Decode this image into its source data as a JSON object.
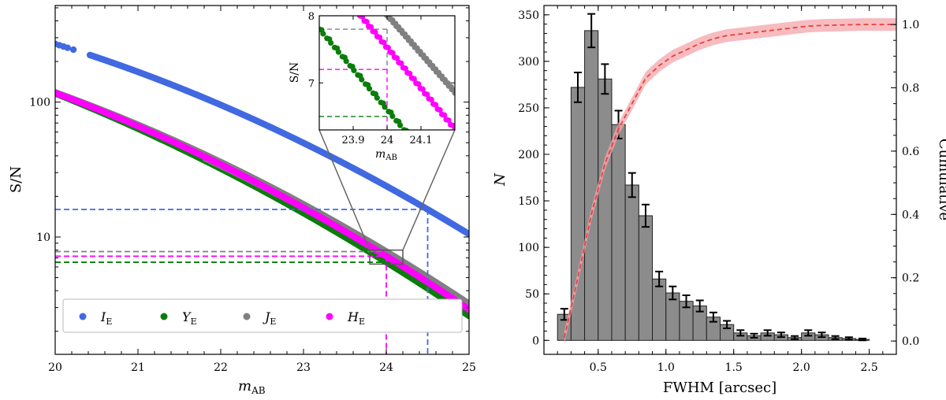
{
  "chart_data": [
    {
      "type": "scatter",
      "panel": "left",
      "xlabel": "m",
      "xlabel_sub": "AB",
      "ylabel": "S/N",
      "xlim": [
        20,
        25
      ],
      "ylim": [
        1.35,
        520
      ],
      "yscale": "log",
      "x_ticks": [
        "20",
        "21",
        "22",
        "23",
        "24",
        "25"
      ],
      "y_ticks": [
        "10",
        "100"
      ],
      "legend_position": "lower-left",
      "series": [
        {
          "name": "I",
          "sub": "E",
          "color": "#4169e1",
          "x_start": 20.0,
          "x_end": 25.0,
          "sn_at_x_start": 270,
          "mag_at_sn_16": 24.5,
          "sn_at_x_end": 10.5
        },
        {
          "name": "Y",
          "sub": "E",
          "color": "#0a7d0a",
          "x_start": 20.0,
          "x_end": 25.0,
          "sn_at_x_start": 116,
          "mag_at_sn_6.5": 24.0,
          "sn_at_x_end": 2.6
        },
        {
          "name": "J",
          "sub": "E",
          "color": "#808080",
          "x_start": 20.0,
          "x_end": 25.0,
          "sn_at_x_start": 118,
          "mag_at_sn_7.8": 24.0,
          "sn_at_x_end": 3.2
        },
        {
          "name": "H",
          "sub": "E",
          "color": "#ff00ff",
          "x_start": 20.0,
          "x_end": 25.0,
          "sn_at_x_start": 117,
          "mag_at_sn_7.2": 24.0,
          "sn_at_x_end": 2.9
        }
      ],
      "reference_lines": [
        {
          "color": "#4169e1",
          "sn": 16,
          "mag": 24.5
        },
        {
          "color": "#808080",
          "sn": 7.8,
          "mag": 24.0
        },
        {
          "color": "#ff00ff",
          "sn": 7.2,
          "mag": 24.0
        },
        {
          "color": "#0a7d0a",
          "sn": 6.5,
          "mag": 24.0
        }
      ],
      "zoom_box": {
        "xlim": [
          23.8,
          24.2
        ],
        "ylim": [
          6.3,
          8.0
        ]
      },
      "inset": {
        "xlim": [
          23.8,
          24.2
        ],
        "ylim": [
          6.3,
          8.0
        ],
        "x_ticks": [
          "23.9",
          "24",
          "24.1"
        ],
        "y_ticks": [
          "7",
          "8"
        ],
        "xlabel": "m",
        "xlabel_sub": "AB",
        "ylabel": "S/N",
        "points": {
          "Y": [
            [
              23.8,
              7.8
            ],
            [
              24.05,
              6.3
            ]
          ],
          "H": [
            [
              23.92,
              8.0
            ],
            [
              24.2,
              6.3
            ]
          ],
          "J": [
            [
              24.0,
              8.0
            ],
            [
              24.2,
              6.85
            ]
          ]
        }
      }
    },
    {
      "type": "bar",
      "panel": "right",
      "xlabel": "FWHM [arcsec]",
      "ylabel": "N",
      "ylabel2": "Cumulative",
      "xlim": [
        0.1,
        2.7
      ],
      "ylim": [
        -15,
        360
      ],
      "y2lim": [
        -0.042,
        1.06
      ],
      "x_ticks": [
        "0.5",
        "1.0",
        "1.5",
        "2.0",
        "2.5"
      ],
      "y_ticks": [
        "0",
        "50",
        "100",
        "150",
        "200",
        "250",
        "300",
        "350"
      ],
      "y2_ticks": [
        "0.0",
        "0.2",
        "0.4",
        "0.6",
        "0.8",
        "1.0"
      ],
      "bar_color": "#8c8c8c",
      "bin_width": 0.1,
      "bins": [
        {
          "center": 0.25,
          "value": 28,
          "error": 6
        },
        {
          "center": 0.35,
          "value": 272,
          "error": 16
        },
        {
          "center": 0.45,
          "value": 333,
          "error": 18
        },
        {
          "center": 0.55,
          "value": 281,
          "error": 16
        },
        {
          "center": 0.65,
          "value": 232,
          "error": 15
        },
        {
          "center": 0.75,
          "value": 167,
          "error": 13
        },
        {
          "center": 0.85,
          "value": 134,
          "error": 12
        },
        {
          "center": 0.95,
          "value": 66,
          "error": 8
        },
        {
          "center": 1.05,
          "value": 51,
          "error": 7
        },
        {
          "center": 1.15,
          "value": 42,
          "error": 6.5
        },
        {
          "center": 1.25,
          "value": 37,
          "error": 6
        },
        {
          "center": 1.35,
          "value": 25,
          "error": 5
        },
        {
          "center": 1.45,
          "value": 17,
          "error": 4
        },
        {
          "center": 1.55,
          "value": 8,
          "error": 3
        },
        {
          "center": 1.65,
          "value": 5,
          "error": 2.2
        },
        {
          "center": 1.75,
          "value": 8,
          "error": 3
        },
        {
          "center": 1.85,
          "value": 6,
          "error": 2.5
        },
        {
          "center": 1.95,
          "value": 3,
          "error": 1.7
        },
        {
          "center": 2.05,
          "value": 8,
          "error": 3
        },
        {
          "center": 2.15,
          "value": 6,
          "error": 2.5
        },
        {
          "center": 2.25,
          "value": 3,
          "error": 1.7
        },
        {
          "center": 2.35,
          "value": 2,
          "error": 1.4
        },
        {
          "center": 2.45,
          "value": 1,
          "error": 1
        }
      ],
      "cumulative": {
        "color": "#e8423f",
        "band_color": "#f4a6ab",
        "x": [
          0.25,
          0.35,
          0.45,
          0.55,
          0.65,
          0.75,
          0.85,
          0.95,
          1.05,
          1.15,
          1.25,
          1.35,
          1.45,
          1.55,
          1.65,
          1.75,
          1.85,
          1.95,
          2.05,
          2.15,
          2.25,
          2.35,
          2.45,
          2.55,
          2.7
        ],
        "y": [
          0.01,
          0.2,
          0.4,
          0.56,
          0.67,
          0.75,
          0.83,
          0.87,
          0.9,
          0.92,
          0.94,
          0.955,
          0.965,
          0.97,
          0.975,
          0.98,
          0.985,
          0.99,
          0.995,
          0.997,
          0.998,
          0.999,
          1.0,
          1.0,
          1.0
        ],
        "band": 0.02
      }
    }
  ]
}
